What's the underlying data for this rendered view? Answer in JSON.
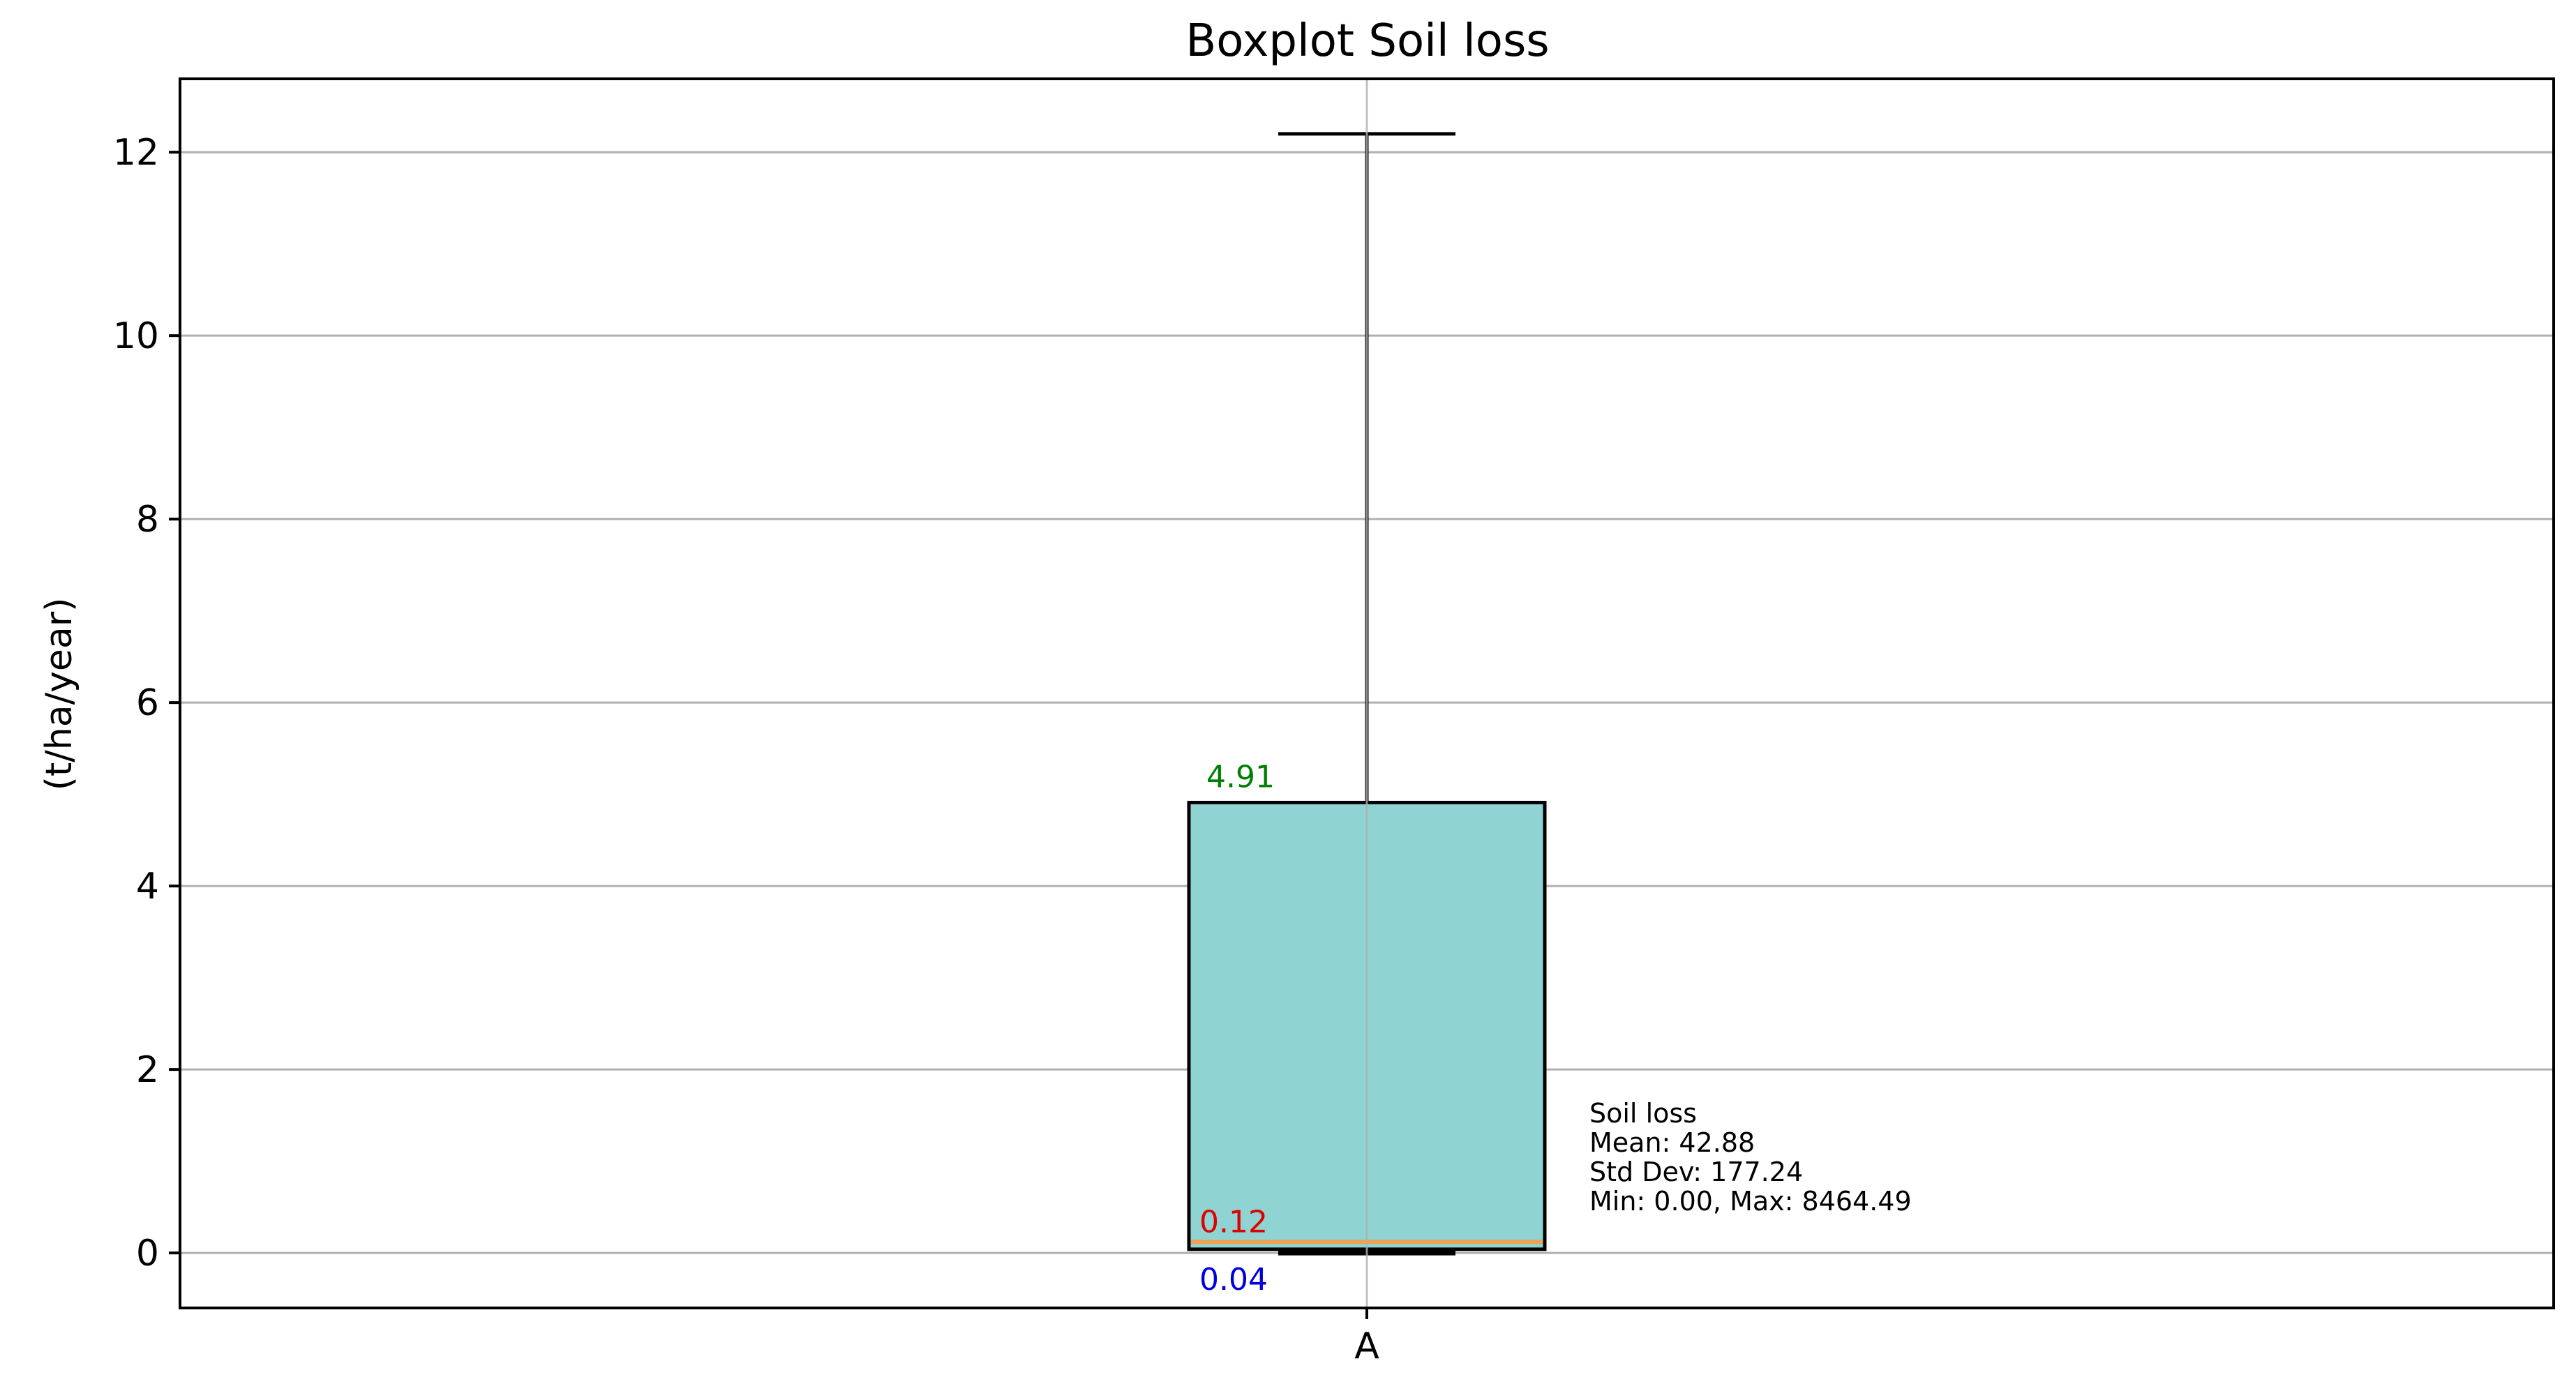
{
  "chart_data": {
    "type": "boxplot",
    "title": "Boxplot Soil loss",
    "xlabel": "",
    "ylabel": "(t/ha/year)",
    "categories": [
      "A"
    ],
    "ylim": [
      -0.6,
      12.8
    ],
    "yticks": [
      0,
      2,
      4,
      6,
      8,
      10,
      12
    ],
    "grid": true,
    "box": {
      "category": "A",
      "whisker_low": 0.0,
      "q1": 0.04,
      "median": 0.12,
      "q3": 4.91,
      "whisker_high": 12.2
    },
    "data_labels": {
      "q3": "4.91",
      "median": "0.12",
      "q1": "0.04"
    },
    "stats_annotation": [
      "Soil loss",
      "Mean: 42.88",
      "Std Dev: 177.24",
      "Min: 0.00, Max: 8464.49"
    ],
    "colors": {
      "box_fill": "#8fd3d3",
      "box_edge": "#000000",
      "median_line": "#f0a050",
      "q3_label": "#008000",
      "median_label": "#e00000",
      "q1_label": "#0000dd",
      "grid": "#b0b0b0"
    }
  }
}
